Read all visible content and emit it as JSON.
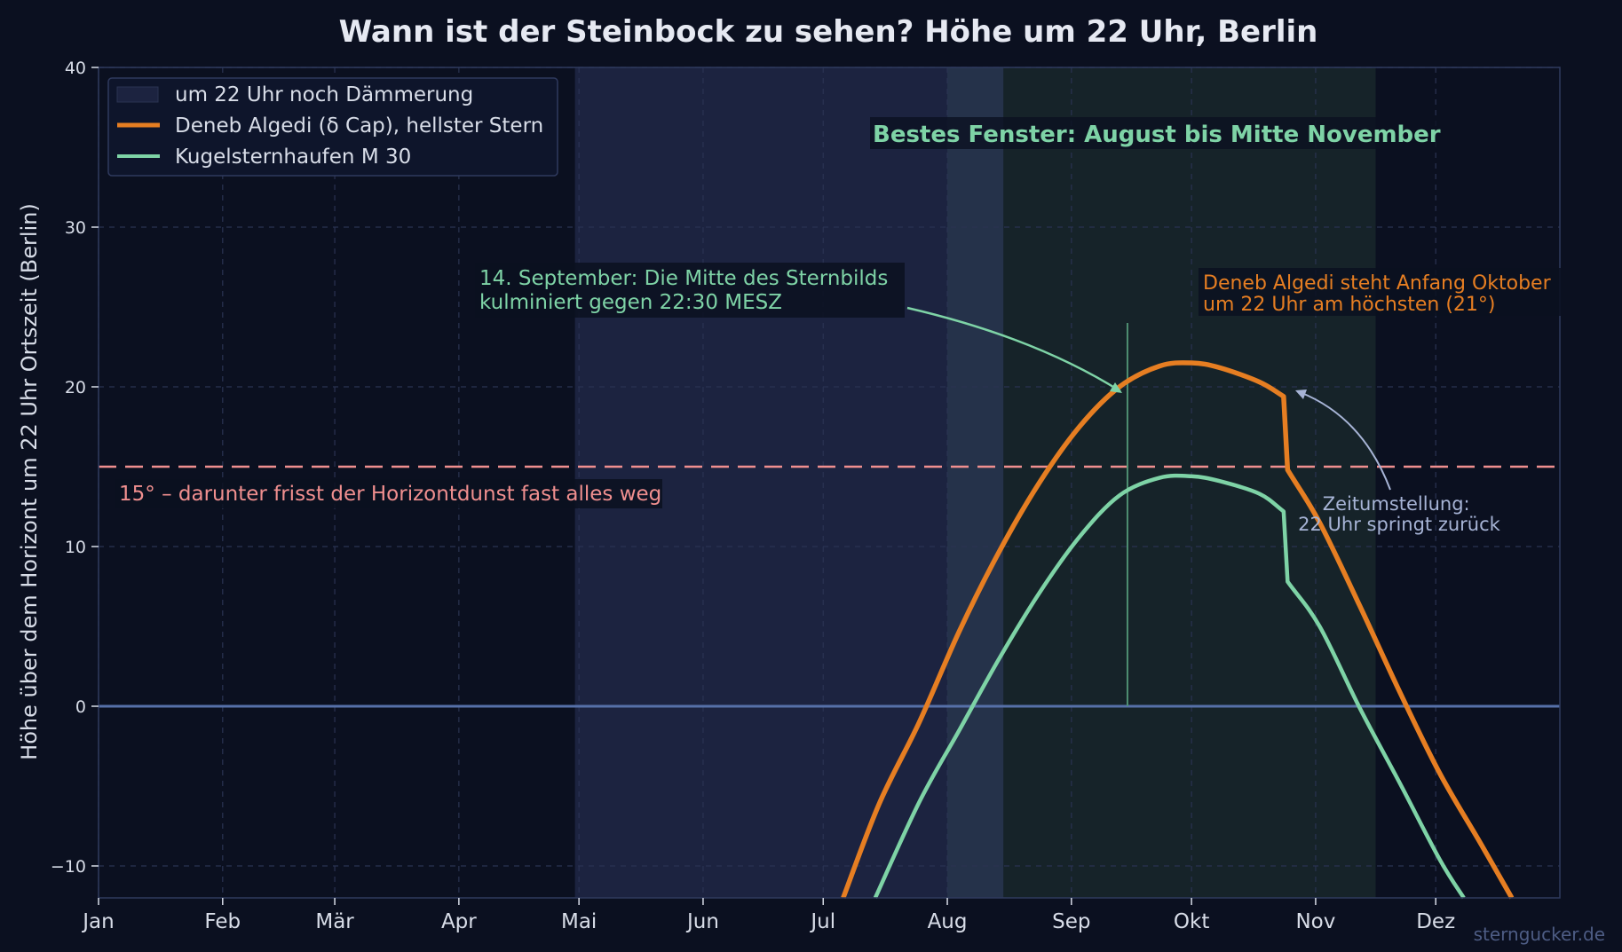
{
  "chart_data": {
    "type": "line",
    "title": "Wann ist der Steinbock zu sehen? Höhe um 22 Uhr, Berlin",
    "ylabel": "Höhe über dem Horizont um 22 Uhr Ortszeit (Berlin)",
    "xlabel": "",
    "xlim": [
      0,
      365
    ],
    "ylim": [
      -12,
      40
    ],
    "yticks": [
      -10,
      0,
      10,
      20,
      30,
      40
    ],
    "ytick_labels": [
      "−10",
      "0",
      "10",
      "20",
      "30",
      "40"
    ],
    "grid": true,
    "legend_position": "top-left",
    "months": [
      {
        "label": "Jan",
        "day": 0
      },
      {
        "label": "Feb",
        "day": 31
      },
      {
        "label": "Mär",
        "day": 59
      },
      {
        "label": "Apr",
        "day": 90
      },
      {
        "label": "Mai",
        "day": 120
      },
      {
        "label": "Jun",
        "day": 151
      },
      {
        "label": "Jul",
        "day": 181
      },
      {
        "label": "Aug",
        "day": 212
      },
      {
        "label": "Sep",
        "day": 243
      },
      {
        "label": "Okt",
        "day": 273
      },
      {
        "label": "Nov",
        "day": 304
      },
      {
        "label": "Dez",
        "day": 334
      }
    ],
    "twilight_band": {
      "label": "um 22 Uhr noch Dämmerung",
      "start_day": 119,
      "end_day": 226,
      "color": "#1c2340"
    },
    "best_window": {
      "label": "Bestes Fenster: August bis Mitte November",
      "start_day": 212,
      "end_day": 319,
      "color": "#17262a"
    },
    "series": [
      {
        "name": "Deneb Algedi (δ Cap), hellster Stern",
        "color": "#e67e22",
        "x": [
          186,
          195,
          205,
          215,
          225,
          235,
          245,
          255,
          265,
          273,
          280,
          290,
          296,
          297,
          305,
          315,
          325,
          335,
          345,
          353
        ],
        "y": [
          -12,
          -6.1,
          -1.0,
          4.7,
          9.7,
          14.0,
          17.5,
          20.0,
          21.3,
          21.5,
          21.2,
          20.3,
          19.4,
          14.8,
          11.5,
          6.3,
          0.9,
          -4.2,
          -8.5,
          -12
        ]
      },
      {
        "name": "Kugelsternhaufen M 30",
        "color": "#7ed3a6",
        "x": [
          194,
          205,
          215,
          225,
          235,
          245,
          255,
          265,
          273,
          280,
          290,
          296,
          297,
          305,
          315,
          325,
          335,
          341
        ],
        "y": [
          -12,
          -6.0,
          -1.5,
          3.0,
          7.1,
          10.6,
          13.2,
          14.3,
          14.4,
          14.1,
          13.3,
          12.2,
          7.8,
          5.0,
          -0.1,
          -4.8,
          -9.6,
          -12
        ]
      }
    ],
    "threshold": {
      "y": 15,
      "label": "15° – darunter frisst der Horizontdunst fast alles weg",
      "color": "#f08f8f"
    },
    "culmination_marker": {
      "day": 257,
      "y_top": 24
    },
    "annotations": {
      "culmination": [
        "14. September: Die Mitte des Sternbilds",
        "kulminiert gegen 22:30 MESZ"
      ],
      "peak": [
        "Deneb Algedi steht Anfang Oktober",
        "um 22 Uhr am höchsten (21°)"
      ],
      "dst": [
        "Zeitumstellung:",
        "22 Uhr springt zurück"
      ]
    },
    "credit": "sterngucker.de"
  },
  "colors": {
    "background": "#0b1020",
    "axes_bg": "#0b1020",
    "grid": "#2a3352",
    "horizon": "#5670a8",
    "culm_line": "#4f8f72",
    "dst_arrow": "#a7b4d6",
    "peak_text": "#e67e22",
    "culm_text": "#7ed3a6",
    "dst_text": "#a7b4d6"
  }
}
